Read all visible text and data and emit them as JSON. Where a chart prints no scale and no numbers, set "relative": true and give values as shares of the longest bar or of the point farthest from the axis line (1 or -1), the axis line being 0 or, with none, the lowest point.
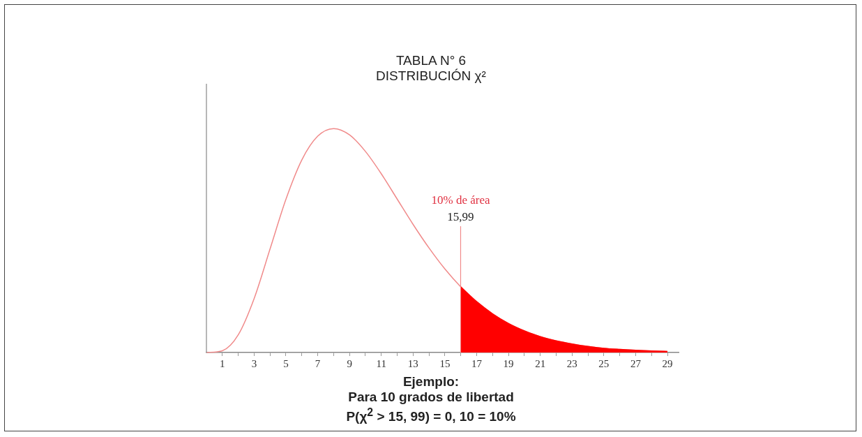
{
  "chart_data": {
    "type": "line",
    "title": "TABLA N° 6",
    "subtitle": "DISTRIBUCIÓN χ²",
    "relative": true,
    "legend": false,
    "grid": false,
    "marker": "none",
    "line_style": "solid",
    "xlim": [
      0,
      29.7
    ],
    "xticks": [
      1,
      {
        "value": 2,
        "label": null
      },
      3,
      {
        "value": 4,
        "label": null
      },
      5,
      {
        "value": 6,
        "label": null
      },
      7,
      {
        "value": 8,
        "label": null
      },
      9,
      {
        "value": 10,
        "label": null
      },
      11,
      {
        "value": 12,
        "label": null
      },
      13,
      {
        "value": 14,
        "label": null
      },
      15,
      {
        "value": 16,
        "label": null
      },
      17,
      {
        "value": 18,
        "label": null
      },
      19,
      {
        "value": 20,
        "label": null
      },
      21,
      {
        "value": 22,
        "label": null
      },
      23,
      {
        "value": 24,
        "label": null
      },
      25,
      {
        "value": 26,
        "label": null
      },
      27,
      {
        "value": 28,
        "label": null
      },
      29
    ],
    "series": [
      {
        "type": "line",
        "color": "#f08a8a",
        "x": [
          0,
          1,
          2,
          3,
          4,
          5,
          6,
          7,
          8,
          9,
          10,
          11,
          12,
          13,
          14,
          15,
          15.99,
          17,
          18,
          19,
          20,
          21,
          22,
          23,
          24,
          25,
          26,
          27,
          28,
          29
        ],
        "values": [
          0,
          0.008,
          0.079,
          0.241,
          0.462,
          0.684,
          0.86,
          0.966,
          1,
          0.972,
          0.898,
          0.798,
          0.685,
          0.572,
          0.467,
          0.373,
          0.294,
          0.227,
          0.173,
          0.13,
          0.097,
          0.071,
          0.052,
          0.038,
          0.027,
          0.019,
          0.014,
          0.01,
          0.007,
          0.005
        ]
      },
      {
        "type": "area",
        "color": "#ff0000",
        "x": [
          15.99,
          17,
          18,
          19,
          20,
          21,
          22,
          23,
          24,
          25,
          26,
          27,
          28,
          29
        ],
        "values": [
          0.294,
          0.227,
          0.173,
          0.13,
          0.097,
          0.071,
          0.052,
          0.038,
          0.027,
          0.019,
          0.014,
          0.01,
          0.007,
          0.005
        ]
      }
    ],
    "ref_lines": [
      {
        "axis": "x",
        "value": 15.99,
        "label": "15,99",
        "color": "#f08a8a"
      }
    ],
    "annotations": [
      "10% de área",
      "Ejemplo:",
      "Para 10 grados de libertad",
      "P(χ$^{2}$ > 15, 99) = 0, 10 = 10%"
    ]
  }
}
